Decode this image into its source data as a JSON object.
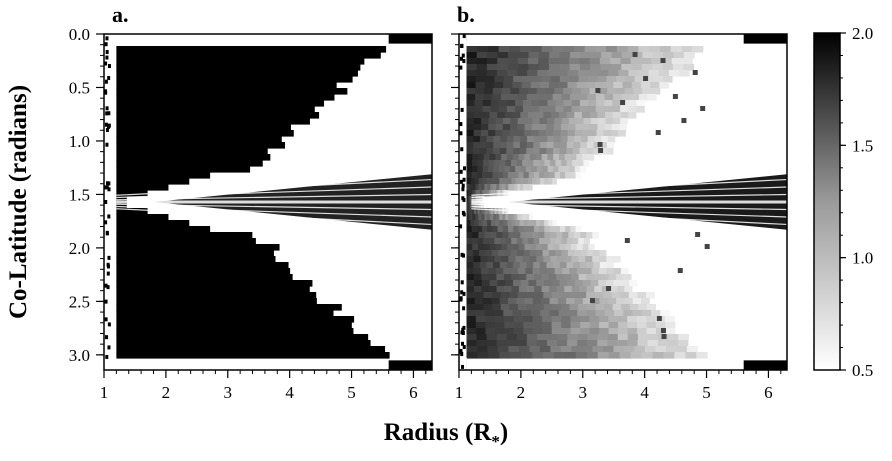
{
  "chart_data": [
    {
      "type": "heatmap",
      "panel_label": "a.",
      "xlim": [
        1,
        6.3
      ],
      "ylim": [
        0,
        3.1416
      ],
      "x_ticks": [
        "1",
        "2",
        "3",
        "4",
        "5",
        "6"
      ],
      "y_ticks": [
        "0.0",
        "0.5",
        "1.0",
        "1.5",
        "2.0",
        "2.5",
        "3.0"
      ],
      "y_inverted": true,
      "colormap": "white-to-black"
    },
    {
      "type": "heatmap",
      "panel_label": "b.",
      "xlim": [
        1,
        6.3
      ],
      "ylim": [
        0,
        3.1416
      ],
      "x_ticks": [
        "1",
        "2",
        "3",
        "4",
        "5",
        "6"
      ],
      "y_inverted": true,
      "colormap": "white-to-black"
    }
  ],
  "axes": {
    "xlabel": "Radius (R",
    "xlabel_sub": "*",
    "xlabel_close": ")",
    "ylabel": "Co-Latitude (radians)"
  },
  "colorbar": {
    "min": 0.5,
    "max": 2.0,
    "tick_labels": [
      "0.5",
      "1.0",
      "1.5",
      "2.0"
    ],
    "colors": {
      "low": "#ffffff",
      "high": "#000000"
    }
  }
}
